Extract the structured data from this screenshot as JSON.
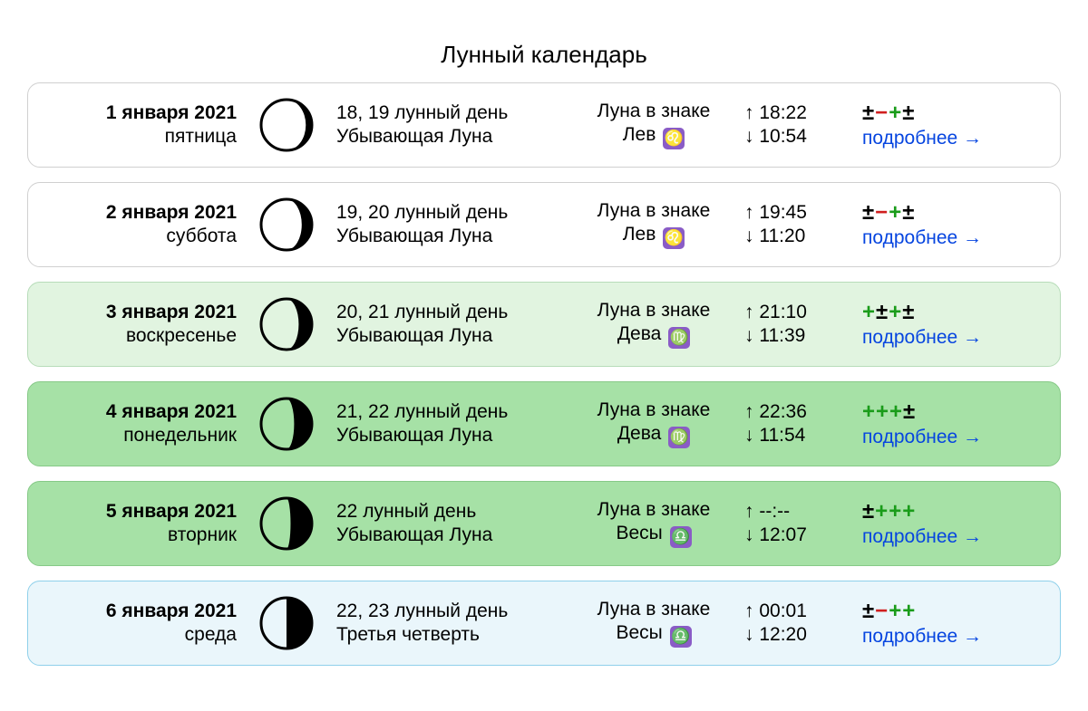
{
  "title": "Лунный календарь",
  "sign_label": "Луна в знаке",
  "more_label": "подробнее",
  "arrow_glyph": "→",
  "up_glyph": "↑",
  "down_glyph": "↓",
  "rating_colors": {
    "plus": "#1a9c1a",
    "minus": "#d01f1f",
    "pm": "#000000"
  },
  "zodiac_style": {
    "bg": "#8a5cc6",
    "fg": "#ffffff"
  },
  "card_styles": {
    "white": {
      "bg": "#ffffff",
      "border": "#d0d0d0",
      "moon_fill": "#ffffff"
    },
    "lightgreen": {
      "bg": "#e1f4e0",
      "border": "#b7dcb9",
      "moon_fill": "#e1f4e0"
    },
    "green": {
      "bg": "#a6e1a6",
      "border": "#86c987",
      "moon_fill": "#a6e1a6"
    },
    "blue": {
      "bg": "#eaf6fb",
      "border": "#8fd0ea",
      "moon_fill": "#eaf6fb"
    }
  },
  "days": [
    {
      "date": "1 января 2021",
      "weekday": "пятница",
      "lunarday": "18, 19 лунный день",
      "phase": "Убывающая Луна",
      "sign": "Лев",
      "sign_glyph": "♌",
      "rise": "18:22",
      "set": "10:54",
      "rating": [
        "pm",
        "minus",
        "plus",
        "pm"
      ],
      "style": "white",
      "moon_shadow": 0.12
    },
    {
      "date": "2 января 2021",
      "weekday": "суббота",
      "lunarday": "19, 20 лунный день",
      "phase": "Убывающая Луна",
      "sign": "Лев",
      "sign_glyph": "♌",
      "rise": "19:45",
      "set": "11:20",
      "rating": [
        "pm",
        "minus",
        "plus",
        "pm"
      ],
      "style": "white",
      "moon_shadow": 0.2
    },
    {
      "date": "3 января 2021",
      "weekday": "воскресенье",
      "lunarday": "20, 21 лунный день",
      "phase": "Убывающая Луна",
      "sign": "Дева",
      "sign_glyph": "♍",
      "rise": "21:10",
      "set": "11:39",
      "rating": [
        "plus",
        "pm",
        "plus",
        "pm"
      ],
      "style": "lightgreen",
      "moon_shadow": 0.26
    },
    {
      "date": "4 января 2021",
      "weekday": "понедельник",
      "lunarday": "21, 22 лунный день",
      "phase": "Убывающая Луна",
      "sign": "Дева",
      "sign_glyph": "♍",
      "rise": "22:36",
      "set": "11:54",
      "rating": [
        "plus",
        "plus",
        "plus",
        "pm"
      ],
      "style": "green",
      "moon_shadow": 0.35
    },
    {
      "date": "5 января 2021",
      "weekday": "вторник",
      "lunarday": "22 лунный день",
      "phase": "Убывающая Луна",
      "sign": "Весы",
      "sign_glyph": "♎",
      "rise": "--:--",
      "set": "12:07",
      "rating": [
        "pm",
        "plus",
        "plus",
        "plus"
      ],
      "style": "green",
      "moon_shadow": 0.42
    },
    {
      "date": "6 января 2021",
      "weekday": "среда",
      "lunarday": "22, 23 лунный день",
      "phase": "Третья четверть",
      "sign": "Весы",
      "sign_glyph": "♎",
      "rise": "00:01",
      "set": "12:20",
      "rating": [
        "pm",
        "minus",
        "plus",
        "plus"
      ],
      "style": "blue",
      "moon_shadow": 0.5
    }
  ]
}
